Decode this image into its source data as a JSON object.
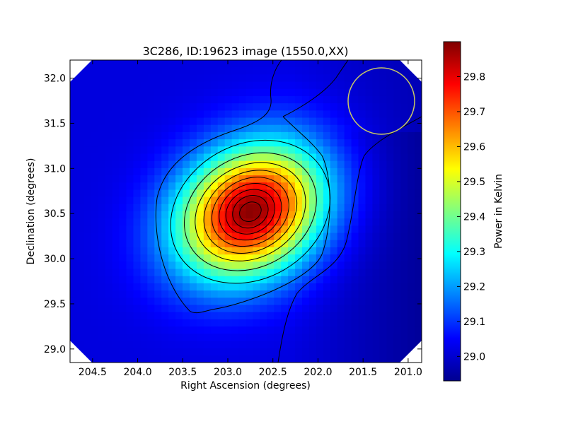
{
  "chart_data": {
    "type": "heatmap",
    "title": "3C286, ID:19623 image (1550.0,XX)",
    "xlabel": "Right Ascension (degrees)",
    "ylabel": "Declination (degrees)",
    "xlim": [
      204.75,
      200.85
    ],
    "ylim": [
      28.85,
      32.2
    ],
    "x_ticks": [
      "204.5",
      "204.0",
      "203.5",
      "203.0",
      "202.5",
      "202.0",
      "201.5",
      "201.0"
    ],
    "y_ticks": [
      "29.0",
      "29.5",
      "30.0",
      "30.5",
      "31.0",
      "31.5",
      "32.0"
    ],
    "colorbar": {
      "label": "Power in Kelvin",
      "range": [
        28.93,
        29.9
      ],
      "ticks": [
        "29.0",
        "29.1",
        "29.2",
        "29.3",
        "29.4",
        "29.5",
        "29.6",
        "29.7",
        "29.8"
      ],
      "colormap": "jet"
    },
    "peak": {
      "x": 202.75,
      "y": 30.52,
      "value": 29.89
    },
    "background_min": 28.93,
    "contours": "black contour lines",
    "beam_circle": {
      "x": 201.28,
      "y": 31.73,
      "color": "#c8c864"
    },
    "grid": false,
    "legend": "none"
  }
}
